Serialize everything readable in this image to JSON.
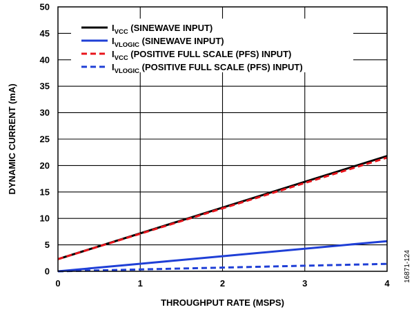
{
  "chart_data": {
    "type": "line",
    "title": "",
    "xlabel": "THROUGHPUT RATE (MSPS)",
    "ylabel": "DYNAMIC CURRENT (mA)",
    "xlim": [
      0,
      4
    ],
    "ylim": [
      0,
      50
    ],
    "xticks": [
      0,
      1,
      2,
      3,
      4
    ],
    "yticks": [
      0,
      5,
      10,
      15,
      20,
      25,
      30,
      35,
      40,
      45,
      50
    ],
    "grid": true,
    "legend_position": "top-left",
    "figure_id": "16871-124",
    "series": [
      {
        "name": "IVCC (SINEWAVE INPUT)",
        "label_main": "I",
        "label_sub": "VCC",
        "label_rest": " (SINEWAVE INPUT)",
        "color": "#000000",
        "dash": "solid",
        "x": [
          0,
          4
        ],
        "y": [
          2.3,
          21.8
        ]
      },
      {
        "name": "IVLOGIC (SINEWAVE INPUT)",
        "label_main": "I",
        "label_sub": "VLOGIC",
        "label_rest": " (SINEWAVE INPUT)",
        "color": "#1f3fd6",
        "dash": "solid",
        "x": [
          0,
          4
        ],
        "y": [
          0,
          5.7
        ]
      },
      {
        "name": "IVCC (POSITIVE FULL SCALE (PFS) INPUT)",
        "label_main": "I",
        "label_sub": "VCC",
        "label_rest": " (POSITIVE FULL SCALE (PFS) INPUT)",
        "color": "#e8141b",
        "dash": "dashed",
        "x": [
          0,
          4
        ],
        "y": [
          2.3,
          21.5
        ]
      },
      {
        "name": "IVLOGIC (POSITIVE FULL SCALE (PFS) INPUT)",
        "label_main": "I",
        "label_sub": "VLOGIC",
        "label_rest": " (POSITIVE FULL SCALE (PFS) INPUT)",
        "color": "#1f3fd6",
        "dash": "dashed",
        "x": [
          0,
          4
        ],
        "y": [
          0,
          1.4
        ]
      }
    ]
  }
}
